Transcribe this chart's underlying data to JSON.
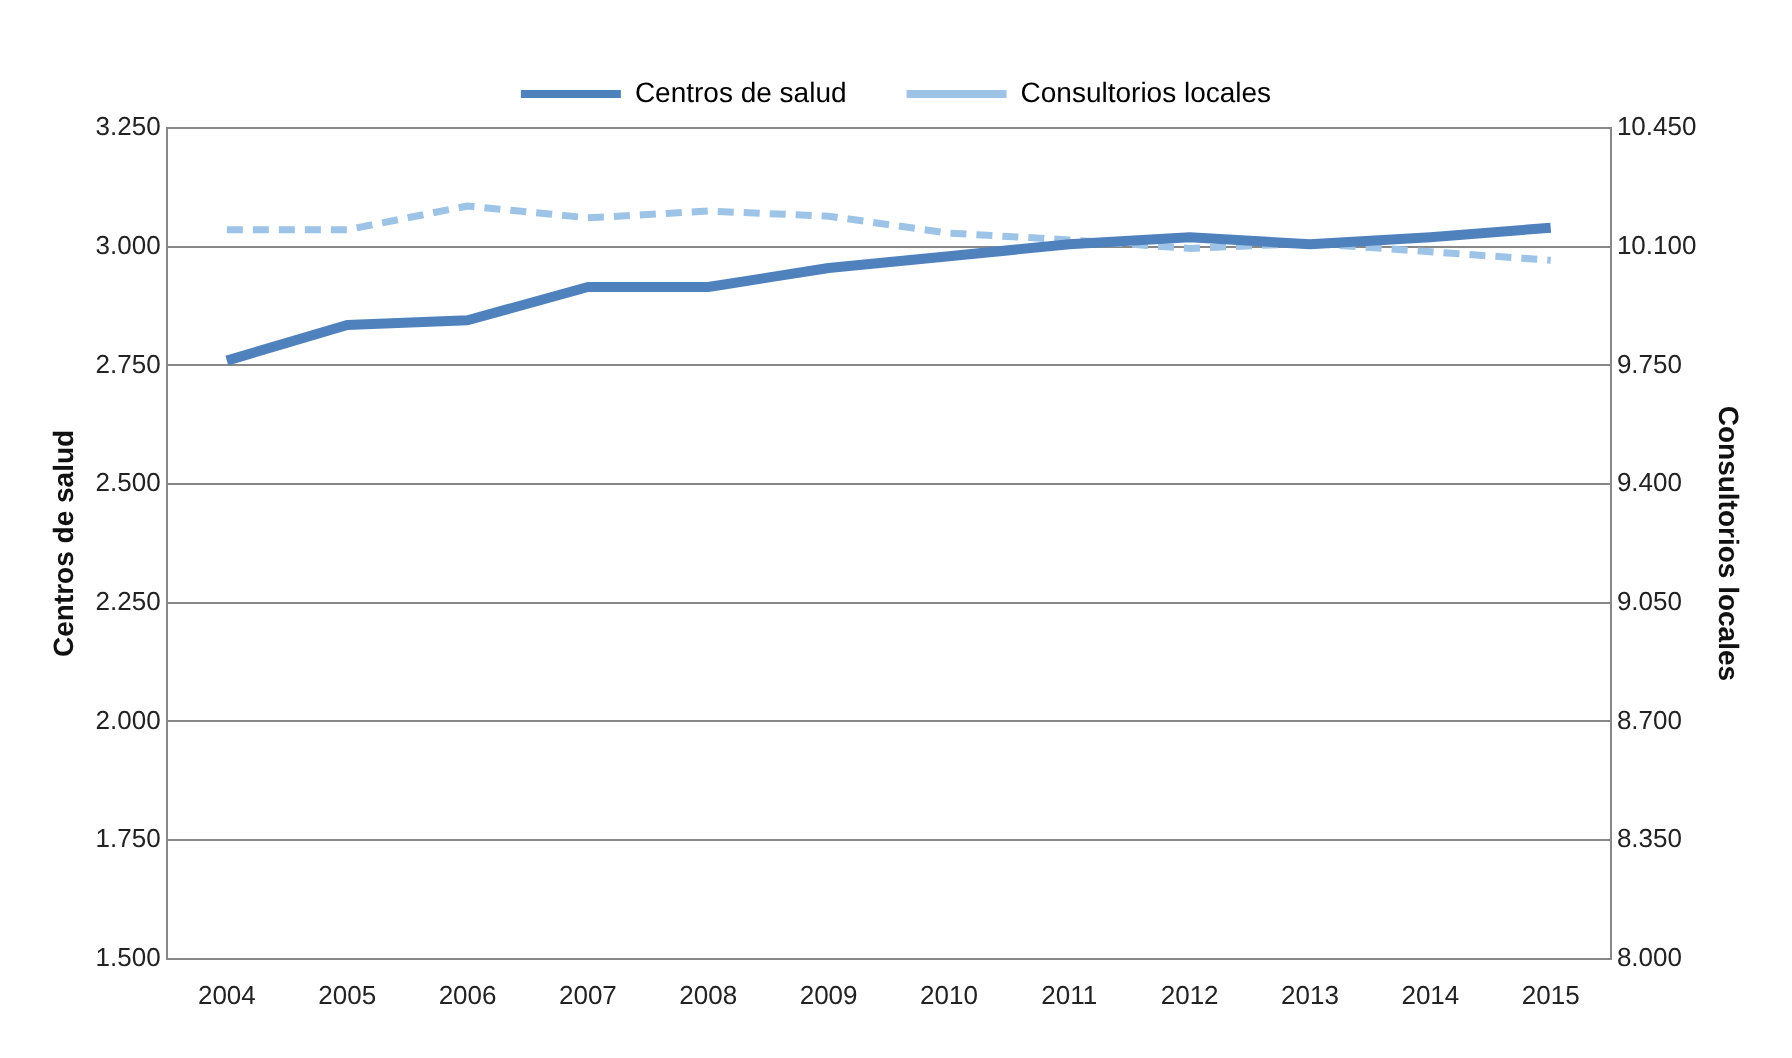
{
  "chart_data": {
    "type": "line",
    "categories": [
      "2004",
      "2005",
      "2006",
      "2007",
      "2008",
      "2009",
      "2010",
      "2011",
      "2012",
      "2013",
      "2014",
      "2015"
    ],
    "ylabel": "Centros de salud",
    "y2label": "Consultorios locales",
    "series": [
      {
        "name": "Centros de salud",
        "color": "#4f81bd",
        "line_style": "solid",
        "values": [
          2760,
          2835,
          2845,
          2915,
          2915,
          2955,
          2980,
          3005,
          3020,
          3005,
          3020,
          3040
        ]
      },
      {
        "name": "Consultorios locales",
        "color": "#9dc3e6",
        "line_style": "dashed",
        "axis": "y2",
        "values": [
          10150,
          10150,
          10220,
          10185,
          10205,
          10190,
          10140,
          10120,
          10095,
          10110,
          10085,
          10060
        ]
      }
    ],
    "ylim": [
      1500,
      3250
    ],
    "yticks": [
      {
        "value": 1500,
        "label": "1.500"
      },
      {
        "value": 1750,
        "label": "1.750"
      },
      {
        "value": 2000,
        "label": "2.000"
      },
      {
        "value": 2250,
        "label": "2.250"
      },
      {
        "value": 2500,
        "label": "2.500"
      },
      {
        "value": 2750,
        "label": "2.750"
      },
      {
        "value": 3000,
        "label": "3.000"
      },
      {
        "value": 3250,
        "label": "3.250"
      }
    ],
    "y2lim": [
      8000,
      10450
    ],
    "y2ticks": [
      {
        "value": 8000,
        "label": "8.000"
      },
      {
        "value": 8350,
        "label": "8.350"
      },
      {
        "value": 8700,
        "label": "8.700"
      },
      {
        "value": 9050,
        "label": "9.050"
      },
      {
        "value": 9400,
        "label": "9.400"
      },
      {
        "value": 9750,
        "label": "9.750"
      },
      {
        "value": 10100,
        "label": "10.100"
      },
      {
        "value": 10450,
        "label": "10.450"
      }
    ],
    "grid": "y",
    "legend": "top",
    "marker": "none"
  }
}
